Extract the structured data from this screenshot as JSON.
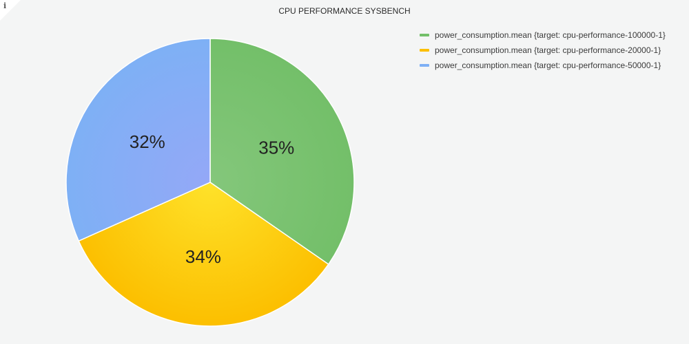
{
  "panel": {
    "info_icon": "info-icon",
    "info_glyph": "i"
  },
  "chart_data": {
    "type": "pie",
    "title": "CPU PERFORMANCE SYSBENCH",
    "legend_position": "right",
    "slices": [
      {
        "name": "power_consumption.mean {target: cpu-performance-100000-1}",
        "value": 35,
        "label": "35%",
        "color": "#73bf69",
        "color_light": "#84c77b"
      },
      {
        "name": "power_consumption.mean {target: cpu-performance-20000-1}",
        "value": 34,
        "label": "34%",
        "color": "#fcbf00",
        "color_light": "#fee22a"
      },
      {
        "name": "power_consumption.mean {target: cpu-performance-50000-1}",
        "value": 32,
        "label": "32%",
        "color": "#7eb0f5",
        "color_light": "#94a8f7"
      }
    ]
  }
}
